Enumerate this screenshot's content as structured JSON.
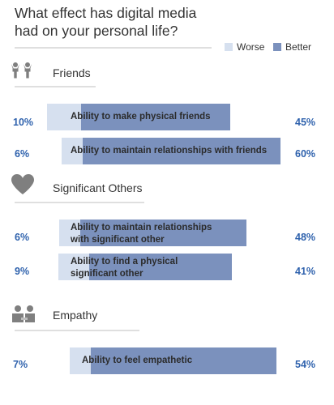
{
  "chart_data": {
    "type": "bar",
    "title_lines": [
      "What effect has digital media",
      "had on your personal life?"
    ],
    "legend": [
      {
        "label": "Worse",
        "color": "#d6e0ef"
      },
      {
        "label": "Better",
        "color": "#7b91bd"
      }
    ],
    "groups": [
      {
        "name": "Friends",
        "icon": "people-icon",
        "items": [
          {
            "label_lines": [
              "Ability to make physical friends"
            ],
            "worse": 10,
            "better": 45,
            "worse_label": "10%",
            "better_label": "45%"
          },
          {
            "label_lines": [
              "Ability to maintain relationships with friends"
            ],
            "worse": 6,
            "better": 60,
            "worse_label": "6%",
            "better_label": "60%"
          }
        ]
      },
      {
        "name": "Significant Others",
        "icon": "heart-icon",
        "items": [
          {
            "label_lines": [
              "Ability to maintain relationships",
              "with significant other"
            ],
            "worse": 6,
            "better": 48,
            "worse_label": "6%",
            "better_label": "48%"
          },
          {
            "label_lines": [
              "Ability to find a physical",
              "significant other"
            ],
            "worse": 9,
            "better": 41,
            "worse_label": "9%",
            "better_label": "41%"
          }
        ]
      },
      {
        "name": "Empathy",
        "icon": "empathy-icon",
        "items": [
          {
            "label_lines": [
              "Ability to feel empathetic"
            ],
            "worse": 7,
            "better": 54,
            "worse_label": "7%",
            "better_label": "54%"
          }
        ]
      }
    ]
  }
}
